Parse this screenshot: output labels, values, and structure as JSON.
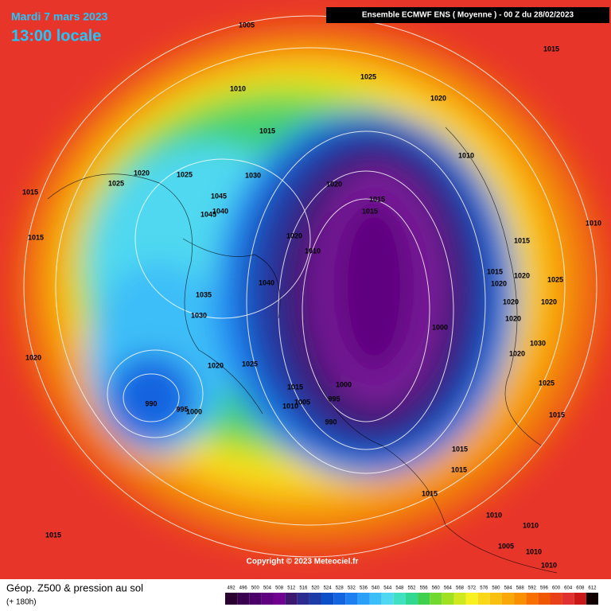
{
  "header": {
    "date": "Mardi 7 mars 2023",
    "time": "13:00 locale",
    "model": "Ensemble ECMWF ENS  ( Moyenne )  -  00 Z du 28/02/2023"
  },
  "footer": {
    "title": "Géop. Z500 & pression au sol",
    "lead": "(+ 180h)",
    "copyright": "Copyright © 2023 Meteociel.fr"
  },
  "colorscale": {
    "labels": [
      492,
      496,
      500,
      504,
      508,
      512,
      516,
      520,
      524,
      528,
      532,
      536,
      540,
      544,
      548,
      552,
      556,
      560,
      564,
      568,
      572,
      576,
      580,
      584,
      588,
      592,
      596,
      600,
      604,
      608,
      612
    ],
    "colors": [
      "#2a0030",
      "#3a0050",
      "#4b0069",
      "#5e0080",
      "#700090",
      "#3c1870",
      "#2c2c90",
      "#1e3ca8",
      "#0a4fc8",
      "#1464e0",
      "#1e80f0",
      "#2ca0f8",
      "#3cbef8",
      "#50d8f0",
      "#40e0c0",
      "#30d890",
      "#40d050",
      "#70d830",
      "#a0e020",
      "#d0e820",
      "#f8f020",
      "#f8d818",
      "#f8c010",
      "#f8a808",
      "#f89000",
      "#f87000",
      "#f05800",
      "#e84018",
      "#e03030",
      "#c81818",
      "#100000"
    ]
  },
  "isobar_labels": [
    1005,
    1025,
    1015,
    1010,
    1020,
    1015,
    1010,
    1030,
    1020,
    1025,
    1025,
    1015,
    1020,
    1015,
    1015,
    1045,
    1045,
    1040,
    1020,
    1015,
    1010,
    1015,
    1010,
    1040,
    1035,
    1030,
    1000,
    1020,
    1020,
    1025,
    1015,
    1000,
    995,
    1005,
    1010,
    990,
    995,
    1000,
    990,
    1015,
    1025,
    1015,
    1015,
    1015,
    1010,
    1015,
    1010,
    1005,
    1010,
    1010,
    1020,
    1020,
    1020,
    1020,
    1020,
    1020,
    1025,
    1015,
    1030
  ]
}
